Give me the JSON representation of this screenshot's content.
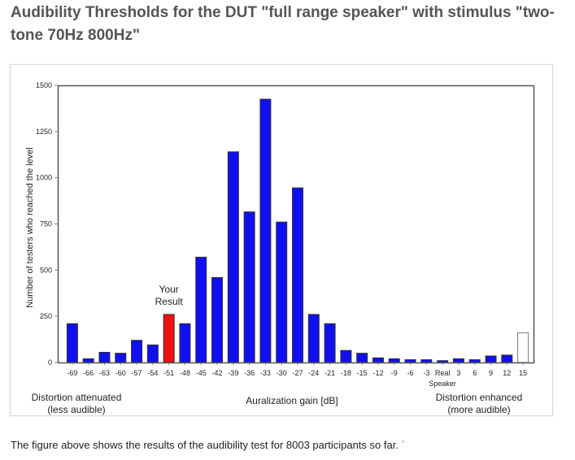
{
  "page": {
    "title": "Audibility Thresholds for the DUT \"full range speaker\" with stimulus \"two-tone 70Hz 800Hz\"",
    "caption": "The figure above shows the results of the audibility test for 8003 participants so far. ˈ"
  },
  "colors": {
    "bar": "#1010ee",
    "highlight": "#ee1111",
    "unfilled": "#ffffff",
    "title_text": "#555555"
  },
  "chart_data": {
    "type": "bar",
    "title": "",
    "xlabel": "Auralization gain [dB]",
    "ylabel": "Number of testers who reached the level",
    "ylim": [
      0,
      1500
    ],
    "yticks": [
      0,
      250,
      500,
      750,
      1000,
      1250,
      1500
    ],
    "grid": false,
    "categories": [
      "-69",
      "-66",
      "-63",
      "-60",
      "-57",
      "-54",
      "-51",
      "-48",
      "-45",
      "-42",
      "-39",
      "-36",
      "-33",
      "-30",
      "-27",
      "-24",
      "-21",
      "-18",
      "-15",
      "-12",
      "-9",
      "-6",
      "-3",
      "Real Speaker",
      "3",
      "6",
      "9",
      "12",
      "15"
    ],
    "values": [
      210,
      20,
      55,
      50,
      120,
      95,
      260,
      210,
      570,
      460,
      1140,
      815,
      1425,
      760,
      945,
      260,
      210,
      65,
      50,
      25,
      20,
      15,
      15,
      10,
      20,
      15,
      35,
      40,
      160
    ],
    "highlight_category": "-51",
    "unfilled_category": "15",
    "annotation": {
      "lines": [
        "Your",
        "Result"
      ],
      "category": "-51"
    },
    "footer_left": [
      "Distortion attenuated",
      "(less audible)"
    ],
    "footer_right": [
      "Distortion enhanced",
      "(more audible)"
    ]
  }
}
